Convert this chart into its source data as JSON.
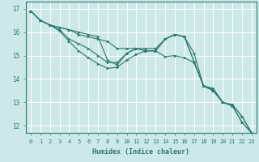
{
  "xlabel": "Humidex (Indice chaleur)",
  "bg_color": "#cce8e8",
  "grid_color": "#ffffff",
  "line_color": "#2d7a6e",
  "xlim": [
    -0.5,
    23.5
  ],
  "ylim": [
    11.7,
    17.3
  ],
  "xticks": [
    0,
    1,
    2,
    3,
    4,
    5,
    6,
    7,
    8,
    9,
    10,
    11,
    12,
    13,
    14,
    15,
    16,
    17,
    18,
    19,
    20,
    21,
    22,
    23
  ],
  "yticks": [
    12,
    13,
    14,
    15,
    16,
    17
  ],
  "series": [
    [
      16.9,
      16.5,
      16.3,
      16.2,
      16.1,
      15.9,
      15.8,
      15.7,
      15.6,
      15.3,
      15.3,
      15.3,
      15.3,
      15.3,
      15.7,
      15.9,
      15.8,
      15.1,
      13.7,
      13.6,
      13.0,
      12.9,
      12.4,
      11.7
    ],
    [
      16.9,
      16.5,
      16.3,
      16.2,
      16.1,
      16.0,
      15.9,
      15.8,
      14.8,
      14.6,
      15.1,
      15.3,
      15.2,
      15.2,
      14.95,
      15.0,
      14.9,
      14.7,
      13.7,
      13.5,
      13.0,
      12.85,
      12.15,
      11.7
    ],
    [
      16.9,
      16.5,
      16.3,
      16.1,
      15.7,
      15.5,
      15.3,
      15.0,
      14.7,
      14.7,
      15.1,
      15.3,
      15.2,
      15.2,
      15.7,
      15.9,
      15.8,
      14.75,
      13.7,
      13.55,
      13.0,
      12.9,
      12.4,
      11.7
    ],
    [
      16.9,
      16.5,
      16.3,
      16.05,
      15.6,
      15.2,
      14.9,
      14.65,
      14.45,
      14.5,
      14.8,
      15.05,
      15.2,
      15.2,
      15.7,
      15.9,
      15.8,
      14.75,
      13.7,
      13.5,
      13.0,
      12.85,
      12.15,
      11.7
    ]
  ]
}
